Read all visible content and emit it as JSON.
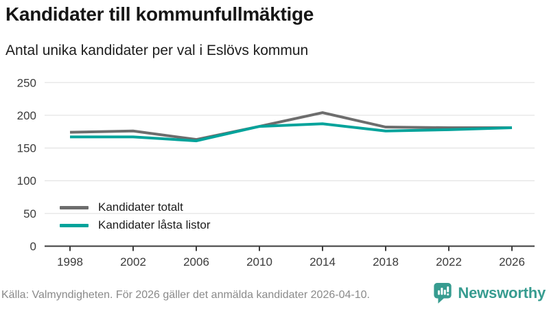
{
  "header": {
    "title": "Kandidater till kommunfullmäktige",
    "subtitle": "Antal unika kandidater per val i Eslövs kommun"
  },
  "chart_data": {
    "type": "line",
    "x": [
      1998,
      2002,
      2006,
      2010,
      2014,
      2018,
      2022,
      2026
    ],
    "series": [
      {
        "name": "Kandidater totalt",
        "color": "#6d6d6d",
        "values": [
          174,
          176,
          163,
          183,
          204,
          182,
          181,
          181
        ]
      },
      {
        "name": "Kandidater låsta listor",
        "color": "#00a39b",
        "values": [
          167,
          167,
          161,
          183,
          187,
          176,
          178,
          181
        ]
      }
    ],
    "title": "Kandidater till kommunfullmäktige",
    "subtitle": "Antal unika kandidater per val i Eslövs kommun",
    "xlabel": "",
    "ylabel": "",
    "ylim": [
      0,
      250
    ],
    "yticks": [
      0,
      50,
      100,
      150,
      200,
      250
    ],
    "xticks": [
      1998,
      2002,
      2006,
      2010,
      2014,
      2018,
      2022,
      2026
    ],
    "grid": true,
    "legend_position": "inside-bottom-left",
    "gridline_color": "#e4e4e4",
    "axis_color": "#3b3b3b",
    "tick_label_color": "#3b3b3b"
  },
  "footer": {
    "source": "Källa: Valmyndigheten. För 2026 gäller det anmälda kandidater 2026-04-10.",
    "brand": "Newsworthy",
    "brand_color": "#379c90"
  }
}
